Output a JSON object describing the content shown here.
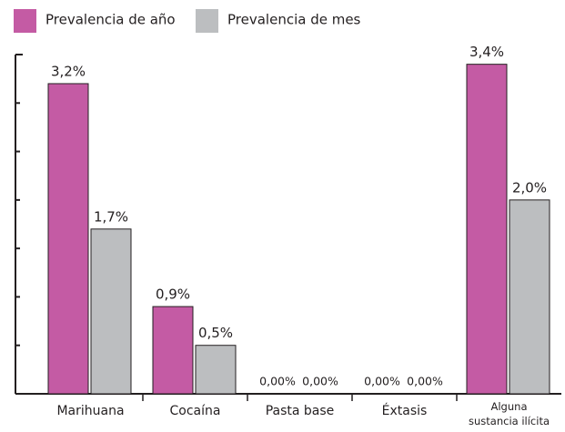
{
  "chart_data": {
    "type": "bar",
    "categories": [
      "Marihuana",
      "Cocaína",
      "Pasta base",
      "Éxtasis",
      "Alguna sustancia ilícita"
    ],
    "series": [
      {
        "name": "Prevalencia de año",
        "color": "#c45ba4",
        "values": [
          3.2,
          0.9,
          0,
          0,
          3.4
        ],
        "value_labels": [
          "3,2%",
          "0,9%",
          "0,00%",
          "0,00%",
          "3,4%"
        ]
      },
      {
        "name": "Prevalencia de mes",
        "color": "#bcbec0",
        "values": [
          1.7,
          0.5,
          0,
          0,
          2.0
        ],
        "value_labels": [
          "1,7%",
          "0,5%",
          "0,00%",
          "0,00%",
          "2,0%"
        ]
      }
    ],
    "ylim": [
      0,
      3.5
    ],
    "yticks": [
      0,
      0.5,
      1,
      1.5,
      2,
      2.5,
      3,
      3.5
    ],
    "legend": "top-left"
  }
}
